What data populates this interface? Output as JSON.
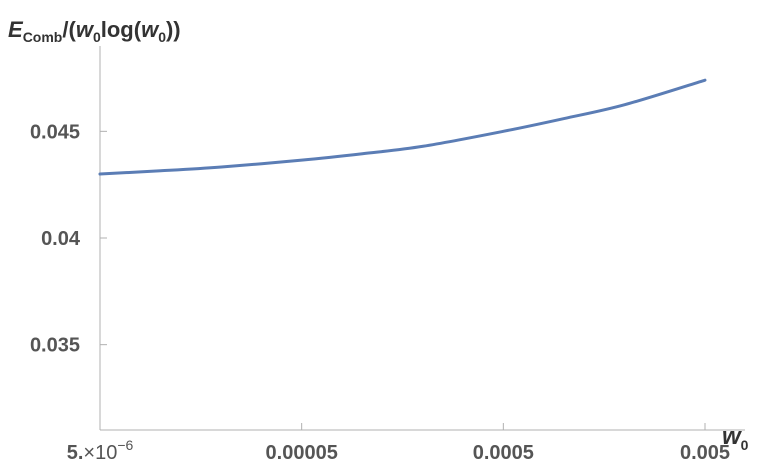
{
  "chart_data": {
    "type": "line",
    "ylabel_parts": {
      "E": "E",
      "E_sub": "Comb",
      "mid": "/(",
      "w1": "w",
      "w1_sub": "0",
      "log": "log(",
      "w2": "w",
      "w2_sub": "0",
      "close": "))"
    },
    "xlabel_parts": {
      "w": "w",
      "w_sub": "0"
    },
    "x_scale": "log",
    "xlim": [
      5e-06,
      0.005
    ],
    "ylim": [
      0.031,
      0.049
    ],
    "x_ticks": [
      {
        "value": 5e-06,
        "base": "5.",
        "mult": "×10",
        "exp": "−6"
      },
      {
        "value": 5e-05,
        "label": "0.00005"
      },
      {
        "value": 0.0005,
        "label": "0.0005"
      },
      {
        "value": 0.005,
        "label": "0.005"
      }
    ],
    "y_ticks": [
      {
        "value": 0.035,
        "label": "0.035"
      },
      {
        "value": 0.04,
        "label": "0.04"
      },
      {
        "value": 0.045,
        "label": "0.045"
      }
    ],
    "grid": false,
    "series": [
      {
        "color": "#5b7db5",
        "x": [
          5e-06,
          1e-05,
          2e-05,
          5e-05,
          0.0001,
          0.0002,
          0.0005,
          0.001,
          0.002,
          0.005
        ],
        "y": [
          0.043,
          0.04315,
          0.04333,
          0.04365,
          0.04395,
          0.0443,
          0.045,
          0.0456,
          0.04625,
          0.0474
        ]
      }
    ]
  }
}
